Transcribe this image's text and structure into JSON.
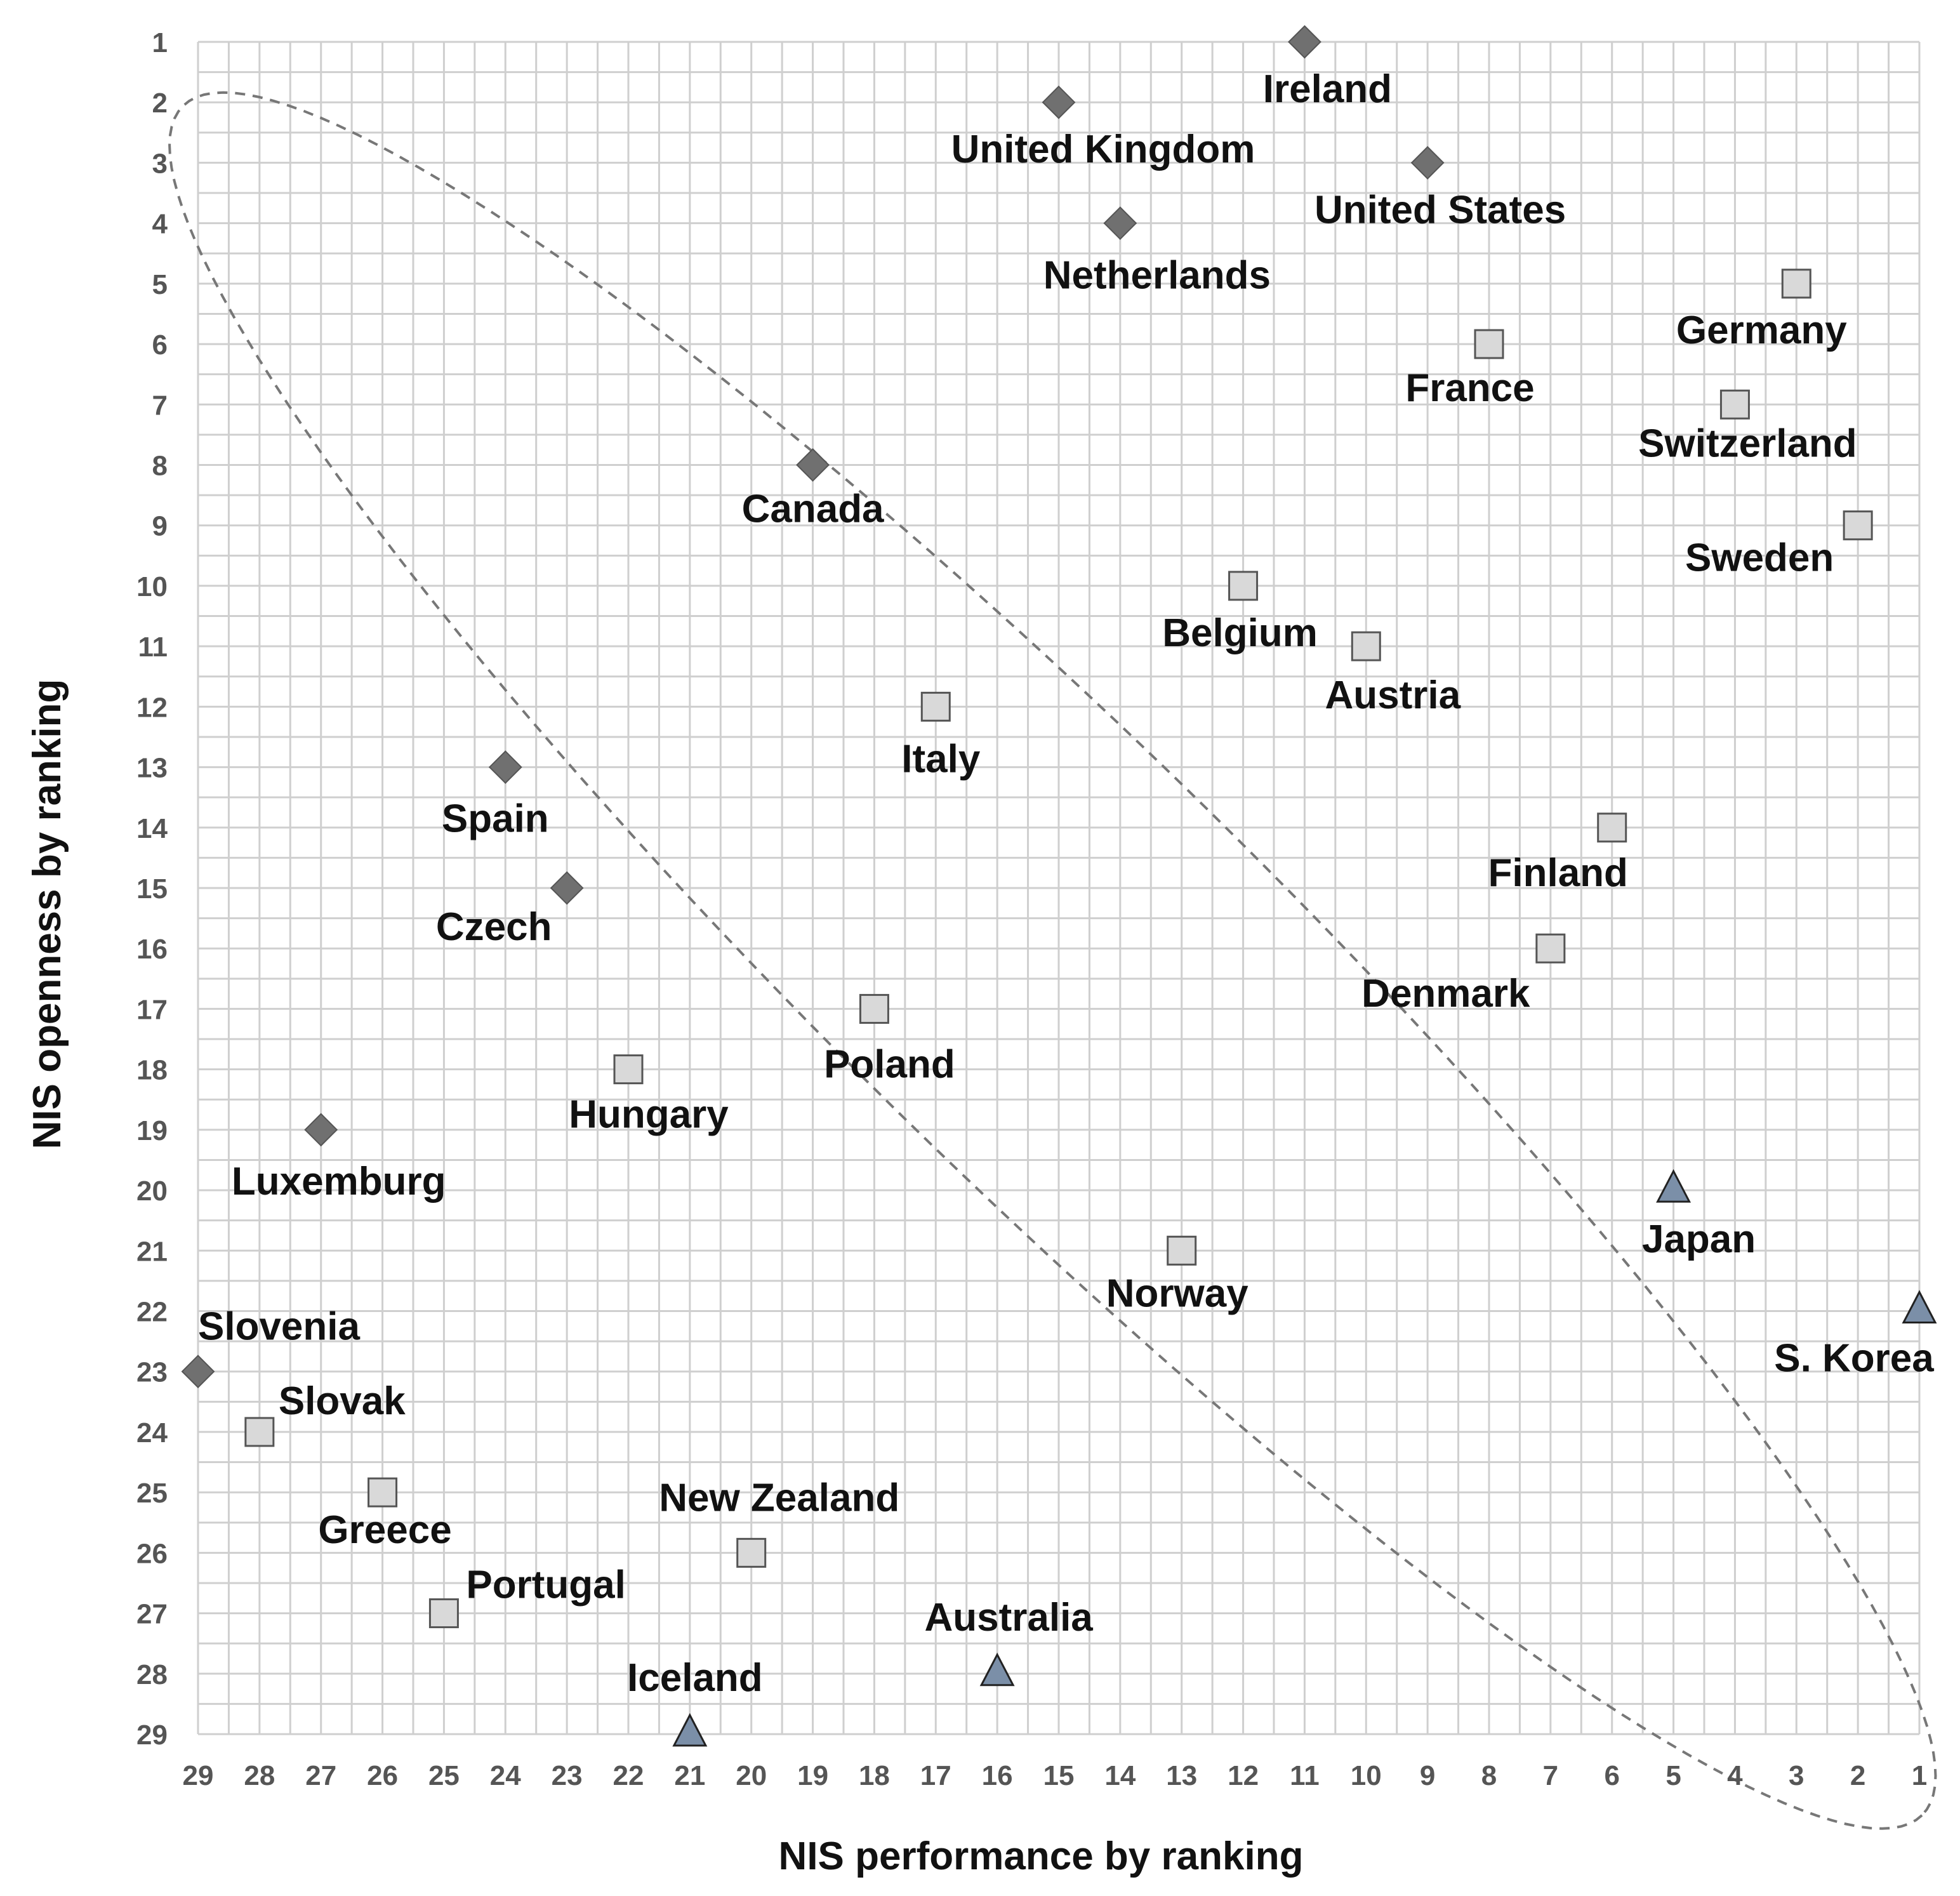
{
  "chart_data": {
    "type": "scatter",
    "xlabel": "NIS performance by ranking",
    "ylabel": "NIS openness by ranking",
    "xlim": [
      29,
      1
    ],
    "ylim": [
      1,
      29
    ],
    "x_reversed": true,
    "y_reversed": true,
    "grid": true,
    "x_ticks": [
      29,
      28,
      27,
      26,
      25,
      24,
      23,
      22,
      21,
      20,
      19,
      18,
      17,
      16,
      15,
      14,
      13,
      12,
      11,
      10,
      9,
      8,
      7,
      6,
      5,
      4,
      3,
      2,
      1
    ],
    "y_ticks": [
      1,
      2,
      3,
      4,
      5,
      6,
      7,
      8,
      9,
      10,
      11,
      12,
      13,
      14,
      15,
      16,
      17,
      18,
      19,
      20,
      21,
      22,
      23,
      24,
      25,
      26,
      27,
      28,
      29
    ],
    "colors": {
      "diamond": "#707070",
      "square": "#d9d9d9",
      "triangle": "#7b8fa8",
      "grid": "#cfcfcf",
      "ellipse": "#777777"
    },
    "points": [
      {
        "label": "Ireland",
        "x": 11,
        "y": 1,
        "marker": "diamond"
      },
      {
        "label": "United Kingdom",
        "x": 15,
        "y": 2,
        "marker": "diamond"
      },
      {
        "label": "United States",
        "x": 9,
        "y": 3,
        "marker": "diamond"
      },
      {
        "label": "Netherlands",
        "x": 14,
        "y": 4,
        "marker": "diamond"
      },
      {
        "label": "Canada",
        "x": 19,
        "y": 8,
        "marker": "diamond"
      },
      {
        "label": "Spain",
        "x": 24,
        "y": 13,
        "marker": "diamond"
      },
      {
        "label": "Czech",
        "x": 23,
        "y": 15,
        "marker": "diamond"
      },
      {
        "label": "Luxemburg",
        "x": 27,
        "y": 19,
        "marker": "diamond"
      },
      {
        "label": "Slovenia",
        "x": 29,
        "y": 23,
        "marker": "diamond"
      },
      {
        "label": "Germany",
        "x": 3,
        "y": 5,
        "marker": "square"
      },
      {
        "label": "France",
        "x": 8,
        "y": 6,
        "marker": "square"
      },
      {
        "label": "Switzerland",
        "x": 4,
        "y": 7,
        "marker": "square"
      },
      {
        "label": "Sweden",
        "x": 2,
        "y": 9,
        "marker": "square"
      },
      {
        "label": "Belgium",
        "x": 12,
        "y": 10,
        "marker": "square"
      },
      {
        "label": "Austria",
        "x": 10,
        "y": 11,
        "marker": "square"
      },
      {
        "label": "Italy",
        "x": 17,
        "y": 12,
        "marker": "square"
      },
      {
        "label": "Finland",
        "x": 6,
        "y": 14,
        "marker": "square"
      },
      {
        "label": "Denmark",
        "x": 7,
        "y": 16,
        "marker": "square"
      },
      {
        "label": "Poland",
        "x": 18,
        "y": 17,
        "marker": "square"
      },
      {
        "label": "Hungary",
        "x": 22,
        "y": 18,
        "marker": "square"
      },
      {
        "label": "Norway",
        "x": 13,
        "y": 21,
        "marker": "square"
      },
      {
        "label": "Slovak",
        "x": 28,
        "y": 24,
        "marker": "square"
      },
      {
        "label": "Greece",
        "x": 26,
        "y": 25,
        "marker": "square"
      },
      {
        "label": "New Zealand",
        "x": 20,
        "y": 26,
        "marker": "square"
      },
      {
        "label": "Portugal",
        "x": 25,
        "y": 27,
        "marker": "square"
      },
      {
        "label": "Japan",
        "x": 5,
        "y": 20,
        "marker": "triangle"
      },
      {
        "label": "S. Korea",
        "x": 1,
        "y": 22,
        "marker": "triangle"
      },
      {
        "label": "Australia",
        "x": 16,
        "y": 28,
        "marker": "triangle"
      },
      {
        "label": "Iceland",
        "x": 21,
        "y": 29,
        "marker": "triangle"
      }
    ]
  }
}
